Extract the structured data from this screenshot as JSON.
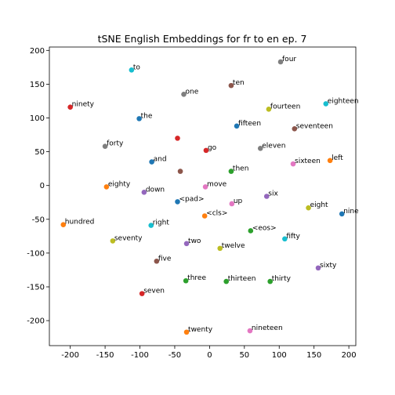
{
  "chart_data": {
    "type": "scatter",
    "title": "tSNE English Embeddings for fr to en ep. 7",
    "xlabel": "",
    "ylabel": "",
    "xlim": [
      -230,
      210
    ],
    "ylim": [
      -237,
      205
    ],
    "xticks": [
      "-200",
      "-150",
      "-100",
      "-50",
      "0",
      "50",
      "100",
      "150",
      "200"
    ],
    "yticks": [
      "200",
      "150",
      "100",
      "50",
      "0",
      "-50",
      "-100",
      "-150",
      "-200"
    ],
    "grid": false,
    "legend": "none",
    "points": [
      {
        "label": "to",
        "x": -112,
        "y": 171,
        "color": "#17becf"
      },
      {
        "label": "four",
        "x": 102,
        "y": 183,
        "color": "#7f7f7f"
      },
      {
        "label": "ten",
        "x": 31,
        "y": 148,
        "color": "#8c564b"
      },
      {
        "label": "one",
        "x": -37,
        "y": 135,
        "color": "#7f7f7f"
      },
      {
        "label": "ninety",
        "x": -200,
        "y": 116,
        "color": "#d62728"
      },
      {
        "label": "eighteen",
        "x": 167,
        "y": 121,
        "color": "#17becf"
      },
      {
        "label": "fourteen",
        "x": 85,
        "y": 113,
        "color": "#bcbd22"
      },
      {
        "label": "the",
        "x": -101,
        "y": 99,
        "color": "#1f77b4"
      },
      {
        "label": "fifteen",
        "x": 39,
        "y": 88,
        "color": "#1f77b4"
      },
      {
        "label": "seventeen",
        "x": 122,
        "y": 84,
        "color": "#8c564b"
      },
      {
        "label": "",
        "x": -46,
        "y": 70,
        "color": "#d62728"
      },
      {
        "label": "forty",
        "x": -150,
        "y": 58,
        "color": "#7f7f7f"
      },
      {
        "label": "go",
        "x": -5,
        "y": 52,
        "color": "#d62728"
      },
      {
        "label": "eleven",
        "x": 73,
        "y": 55,
        "color": "#7f7f7f"
      },
      {
        "label": "left",
        "x": 173,
        "y": 37,
        "color": "#ff7f0e"
      },
      {
        "label": "and",
        "x": -83,
        "y": 35,
        "color": "#1f77b4"
      },
      {
        "label": "sixteen",
        "x": 120,
        "y": 32,
        "color": "#e377c2"
      },
      {
        "label": "",
        "x": -42,
        "y": 21,
        "color": "#8c564b"
      },
      {
        "label": "then",
        "x": 31,
        "y": 21,
        "color": "#2ca02c"
      },
      {
        "label": "eighty",
        "x": -148,
        "y": -2,
        "color": "#ff7f0e"
      },
      {
        "label": "move",
        "x": -6,
        "y": -2,
        "color": "#e377c2"
      },
      {
        "label": "down",
        "x": -94,
        "y": -10,
        "color": "#9467bd"
      },
      {
        "label": "six",
        "x": 82,
        "y": -16,
        "color": "#9467bd"
      },
      {
        "label": "<pad>",
        "x": -46,
        "y": -24,
        "color": "#1f77b4"
      },
      {
        "label": "up",
        "x": 32,
        "y": -27,
        "color": "#e377c2"
      },
      {
        "label": "eight",
        "x": 142,
        "y": -33,
        "color": "#bcbd22"
      },
      {
        "label": "nine",
        "x": 190,
        "y": -42,
        "color": "#1f77b4"
      },
      {
        "label": "<cls>",
        "x": -7,
        "y": -45,
        "color": "#ff7f0e"
      },
      {
        "label": "hundred",
        "x": -210,
        "y": -58,
        "color": "#ff7f0e"
      },
      {
        "label": "right",
        "x": -84,
        "y": -59,
        "color": "#17becf"
      },
      {
        "label": "<eos>",
        "x": 59,
        "y": -67,
        "color": "#2ca02c"
      },
      {
        "label": "seventy",
        "x": -139,
        "y": -82,
        "color": "#bcbd22"
      },
      {
        "label": "fifty",
        "x": 108,
        "y": -79,
        "color": "#17becf"
      },
      {
        "label": "two",
        "x": -33,
        "y": -86,
        "color": "#9467bd"
      },
      {
        "label": "twelve",
        "x": 15,
        "y": -93,
        "color": "#bcbd22"
      },
      {
        "label": "five",
        "x": -76,
        "y": -112,
        "color": "#8c564b"
      },
      {
        "label": "sixty",
        "x": 156,
        "y": -122,
        "color": "#9467bd"
      },
      {
        "label": "three",
        "x": -34,
        "y": -141,
        "color": "#2ca02c"
      },
      {
        "label": "thirteen",
        "x": 24,
        "y": -142,
        "color": "#2ca02c"
      },
      {
        "label": "thirty",
        "x": 87,
        "y": -142,
        "color": "#2ca02c"
      },
      {
        "label": "seven",
        "x": -97,
        "y": -160,
        "color": "#d62728"
      },
      {
        "label": "twenty",
        "x": -33,
        "y": -217,
        "color": "#ff7f0e"
      },
      {
        "label": "nineteen",
        "x": 58,
        "y": -215,
        "color": "#e377c2"
      }
    ]
  }
}
